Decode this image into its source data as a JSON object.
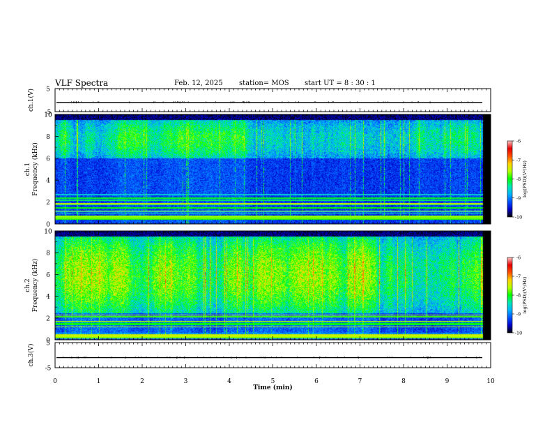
{
  "header": {
    "title": "VLF Spectra",
    "date": "Feb. 12, 2025",
    "station": "station= MOS",
    "start_ut": "start  UT =  8 : 30 : 1"
  },
  "chart_data": [
    {
      "type": "line",
      "name": "ch1-waveform",
      "ylabel": "ch.1(V)",
      "ylim": [
        -5,
        5
      ],
      "yticks": [
        "5",
        "-5"
      ],
      "xlim": [
        0,
        10
      ],
      "trace_level_v": -1.0
    },
    {
      "type": "heatmap",
      "name": "ch1-spectrogram",
      "ylabel": "ch.1\nFrequency (kHz)",
      "ylim": [
        0,
        10
      ],
      "xlim": [
        0,
        10
      ],
      "yticks": [
        "0",
        "2",
        "4",
        "6",
        "8",
        "10"
      ],
      "data_end_min": 9.83,
      "intensity_band_khz": [
        6,
        9.5
      ],
      "colorbar": {
        "label": "log(PSD)(V²/Hz)",
        "ticks": [
          "-6",
          "-7",
          "-8",
          "-9",
          "-10"
        ],
        "range": [
          -10,
          -6
        ]
      }
    },
    {
      "type": "heatmap",
      "name": "ch2-spectrogram",
      "ylabel": "ch.2\nFrequency (kHz)",
      "ylim": [
        0,
        10
      ],
      "xlim": [
        0,
        10
      ],
      "yticks": [
        "0",
        "2",
        "4",
        "6",
        "8",
        "10"
      ],
      "data_end_min": 9.83,
      "intensity_band_khz": [
        2.5,
        9.5
      ],
      "colorbar": {
        "label": "log(PSD)(V²/Hz)",
        "ticks": [
          "-6",
          "-7",
          "-8",
          "-9",
          "-10"
        ],
        "range": [
          -10,
          -6
        ]
      }
    },
    {
      "type": "line",
      "name": "ch3-waveform",
      "ylabel": "ch.3(V)",
      "ylim": [
        -5,
        5
      ],
      "yticks": [
        "5",
        "-5"
      ],
      "xlim": [
        0,
        10
      ],
      "trace_level_v": -1.0
    }
  ],
  "xaxis": {
    "label": "Time  (min)",
    "ticks": [
      "0",
      "1",
      "2",
      "3",
      "4",
      "5",
      "6",
      "7",
      "8",
      "9",
      "10"
    ]
  },
  "colors": {
    "axis": "#000000",
    "background": "#ffffff",
    "colormap": [
      "#000000",
      "#0000c8",
      "#0050ff",
      "#00b4ff",
      "#00e6b4",
      "#00ff00",
      "#b4ff00",
      "#ffd200",
      "#ff5000",
      "#e60000",
      "#ffc8c8"
    ]
  }
}
